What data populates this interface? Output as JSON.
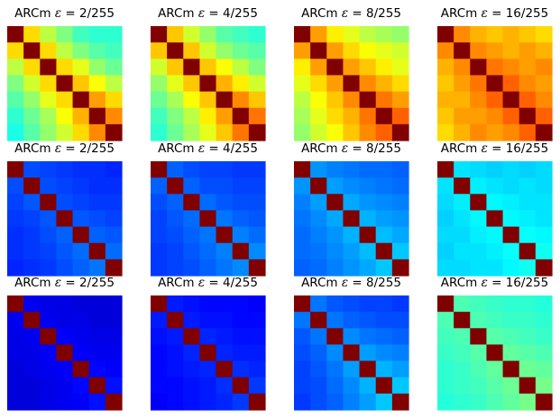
{
  "colors": {
    "background": "#ffffff",
    "colormap": "jet",
    "diagonal": "#800000"
  },
  "chart_data": [
    {
      "type": "heatmap",
      "title_prefix": "ARCm",
      "title_symbol": "ε",
      "title_value": " = 2/255",
      "title": "ARCm ε = 2/255",
      "size": 7,
      "colormap": "jet",
      "matrix": [
        [
          1.0,
          0.66,
          0.56,
          0.5,
          0.44,
          0.42,
          0.42
        ],
        [
          0.66,
          1.0,
          0.66,
          0.56,
          0.5,
          0.46,
          0.44
        ],
        [
          0.56,
          0.66,
          1.0,
          0.66,
          0.6,
          0.52,
          0.48
        ],
        [
          0.5,
          0.58,
          0.66,
          1.0,
          0.68,
          0.62,
          0.56
        ],
        [
          0.46,
          0.52,
          0.6,
          0.66,
          1.0,
          0.72,
          0.66
        ],
        [
          0.42,
          0.48,
          0.54,
          0.62,
          0.7,
          1.0,
          0.74
        ],
        [
          0.4,
          0.46,
          0.52,
          0.58,
          0.66,
          0.74,
          1.0
        ]
      ]
    },
    {
      "type": "heatmap",
      "title_prefix": "ARCm",
      "title_symbol": "ε",
      "title_value": " = 4/255",
      "title": "ARCm ε = 4/255",
      "size": 7,
      "colormap": "jet",
      "matrix": [
        [
          1.0,
          0.68,
          0.58,
          0.52,
          0.46,
          0.44,
          0.42
        ],
        [
          0.68,
          1.0,
          0.68,
          0.58,
          0.52,
          0.48,
          0.46
        ],
        [
          0.58,
          0.68,
          1.0,
          0.68,
          0.62,
          0.56,
          0.5
        ],
        [
          0.52,
          0.6,
          0.68,
          1.0,
          0.7,
          0.64,
          0.58
        ],
        [
          0.48,
          0.54,
          0.62,
          0.68,
          1.0,
          0.74,
          0.68
        ],
        [
          0.44,
          0.5,
          0.56,
          0.64,
          0.72,
          1.0,
          0.76
        ],
        [
          0.42,
          0.48,
          0.54,
          0.6,
          0.68,
          0.76,
          1.0
        ]
      ]
    },
    {
      "type": "heatmap",
      "title_prefix": "ARCm",
      "title_symbol": "ε",
      "title_value": " = 8/255",
      "title": "ARCm ε = 8/255",
      "size": 7,
      "colormap": "jet",
      "matrix": [
        [
          1.0,
          0.72,
          0.64,
          0.6,
          0.56,
          0.54,
          0.52
        ],
        [
          0.72,
          1.0,
          0.72,
          0.66,
          0.62,
          0.6,
          0.58
        ],
        [
          0.64,
          0.72,
          1.0,
          0.72,
          0.68,
          0.64,
          0.6
        ],
        [
          0.6,
          0.66,
          0.72,
          1.0,
          0.74,
          0.7,
          0.66
        ],
        [
          0.56,
          0.62,
          0.68,
          0.74,
          1.0,
          0.76,
          0.72
        ],
        [
          0.54,
          0.6,
          0.66,
          0.7,
          0.76,
          1.0,
          0.78
        ],
        [
          0.52,
          0.58,
          0.62,
          0.68,
          0.74,
          0.78,
          1.0
        ]
      ]
    },
    {
      "type": "heatmap",
      "title_prefix": "ARCm",
      "title_symbol": "ε",
      "title_value": " = 16/255",
      "title": "ARCm ε = 16/255",
      "size": 7,
      "colormap": "jet",
      "matrix": [
        [
          1.0,
          0.74,
          0.7,
          0.68,
          0.7,
          0.68,
          0.66
        ],
        [
          0.74,
          1.0,
          0.74,
          0.72,
          0.7,
          0.72,
          0.7
        ],
        [
          0.7,
          0.74,
          1.0,
          0.76,
          0.74,
          0.72,
          0.74
        ],
        [
          0.68,
          0.72,
          0.76,
          1.0,
          0.78,
          0.74,
          0.72
        ],
        [
          0.7,
          0.7,
          0.74,
          0.78,
          1.0,
          0.78,
          0.74
        ],
        [
          0.68,
          0.72,
          0.72,
          0.74,
          0.78,
          1.0,
          0.78
        ],
        [
          0.66,
          0.7,
          0.74,
          0.72,
          0.74,
          0.78,
          1.0
        ]
      ]
    },
    {
      "type": "heatmap",
      "title_prefix": "ARCm",
      "title_symbol": "ε",
      "title_value": " = 2/255",
      "title": "ARCm ε = 2/255",
      "size": 7,
      "colormap": "jet",
      "matrix": [
        [
          1.0,
          0.2,
          0.19,
          0.18,
          0.17,
          0.17,
          0.16
        ],
        [
          0.2,
          1.0,
          0.2,
          0.19,
          0.18,
          0.17,
          0.17
        ],
        [
          0.19,
          0.21,
          1.0,
          0.2,
          0.19,
          0.18,
          0.18
        ],
        [
          0.18,
          0.19,
          0.21,
          1.0,
          0.21,
          0.2,
          0.19
        ],
        [
          0.17,
          0.18,
          0.2,
          0.22,
          1.0,
          0.22,
          0.21
        ],
        [
          0.17,
          0.18,
          0.19,
          0.21,
          0.23,
          1.0,
          0.23
        ],
        [
          0.16,
          0.17,
          0.18,
          0.2,
          0.22,
          0.24,
          1.0
        ]
      ]
    },
    {
      "type": "heatmap",
      "title_prefix": "ARCm",
      "title_symbol": "ε",
      "title_value": " = 4/255",
      "title": "ARCm ε = 4/255",
      "size": 7,
      "colormap": "jet",
      "matrix": [
        [
          1.0,
          0.22,
          0.2,
          0.19,
          0.19,
          0.18,
          0.18
        ],
        [
          0.22,
          1.0,
          0.22,
          0.2,
          0.2,
          0.19,
          0.19
        ],
        [
          0.2,
          0.22,
          1.0,
          0.23,
          0.21,
          0.2,
          0.2
        ],
        [
          0.19,
          0.21,
          0.23,
          1.0,
          0.24,
          0.22,
          0.21
        ],
        [
          0.19,
          0.2,
          0.22,
          0.24,
          1.0,
          0.25,
          0.23
        ],
        [
          0.18,
          0.19,
          0.21,
          0.23,
          0.25,
          1.0,
          0.26
        ],
        [
          0.18,
          0.19,
          0.2,
          0.22,
          0.24,
          0.26,
          1.0
        ]
      ]
    },
    {
      "type": "heatmap",
      "title_prefix": "ARCm",
      "title_symbol": "ε",
      "title_value": " = 8/255",
      "title": "ARCm ε = 8/255",
      "size": 7,
      "colormap": "jet",
      "matrix": [
        [
          1.0,
          0.27,
          0.25,
          0.24,
          0.23,
          0.23,
          0.22
        ],
        [
          0.27,
          1.0,
          0.28,
          0.26,
          0.25,
          0.24,
          0.23
        ],
        [
          0.25,
          0.28,
          1.0,
          0.29,
          0.27,
          0.26,
          0.25
        ],
        [
          0.24,
          0.26,
          0.29,
          1.0,
          0.3,
          0.28,
          0.27
        ],
        [
          0.23,
          0.25,
          0.27,
          0.3,
          1.0,
          0.31,
          0.29
        ],
        [
          0.23,
          0.24,
          0.26,
          0.28,
          0.31,
          1.0,
          0.32
        ],
        [
          0.22,
          0.23,
          0.25,
          0.27,
          0.29,
          0.32,
          1.0
        ]
      ]
    },
    {
      "type": "heatmap",
      "title_prefix": "ARCm",
      "title_symbol": "ε",
      "title_value": " = 16/255",
      "title": "ARCm ε = 16/255",
      "size": 7,
      "colormap": "jet",
      "matrix": [
        [
          1.0,
          0.35,
          0.34,
          0.33,
          0.34,
          0.33,
          0.34
        ],
        [
          0.35,
          1.0,
          0.36,
          0.35,
          0.34,
          0.35,
          0.34
        ],
        [
          0.34,
          0.36,
          1.0,
          0.37,
          0.36,
          0.35,
          0.35
        ],
        [
          0.33,
          0.35,
          0.37,
          1.0,
          0.37,
          0.36,
          0.35
        ],
        [
          0.34,
          0.34,
          0.36,
          0.37,
          1.0,
          0.38,
          0.37
        ],
        [
          0.33,
          0.35,
          0.35,
          0.36,
          0.38,
          1.0,
          0.39
        ],
        [
          0.34,
          0.34,
          0.35,
          0.35,
          0.37,
          0.39,
          1.0
        ]
      ]
    },
    {
      "type": "heatmap",
      "title_prefix": "ARCm",
      "title_symbol": "ε",
      "title_value": " = 2/255",
      "title": "ARCm ε = 2/255",
      "size": 7,
      "colormap": "jet",
      "matrix": [
        [
          1.0,
          0.11,
          0.1,
          0.1,
          0.09,
          0.09,
          0.09
        ],
        [
          0.11,
          1.0,
          0.11,
          0.1,
          0.1,
          0.09,
          0.09
        ],
        [
          0.1,
          0.11,
          1.0,
          0.12,
          0.11,
          0.1,
          0.1
        ],
        [
          0.1,
          0.1,
          0.12,
          1.0,
          0.12,
          0.11,
          0.11
        ],
        [
          0.09,
          0.1,
          0.11,
          0.12,
          1.0,
          0.13,
          0.12
        ],
        [
          0.09,
          0.09,
          0.1,
          0.11,
          0.13,
          1.0,
          0.14
        ],
        [
          0.09,
          0.09,
          0.1,
          0.11,
          0.12,
          0.14,
          1.0
        ]
      ]
    },
    {
      "type": "heatmap",
      "title_prefix": "ARCm",
      "title_symbol": "ε",
      "title_value": " = 4/255",
      "title": "ARCm ε = 4/255",
      "size": 7,
      "colormap": "jet",
      "matrix": [
        [
          1.0,
          0.15,
          0.14,
          0.13,
          0.13,
          0.13,
          0.12
        ],
        [
          0.15,
          1.0,
          0.15,
          0.14,
          0.14,
          0.13,
          0.13
        ],
        [
          0.14,
          0.15,
          1.0,
          0.16,
          0.15,
          0.14,
          0.14
        ],
        [
          0.13,
          0.14,
          0.16,
          1.0,
          0.16,
          0.15,
          0.15
        ],
        [
          0.13,
          0.14,
          0.15,
          0.16,
          1.0,
          0.17,
          0.16
        ],
        [
          0.13,
          0.13,
          0.14,
          0.15,
          0.17,
          1.0,
          0.18
        ],
        [
          0.12,
          0.13,
          0.14,
          0.15,
          0.16,
          0.18,
          1.0
        ]
      ]
    },
    {
      "type": "heatmap",
      "title_prefix": "ARCm",
      "title_symbol": "ε",
      "title_value": " = 8/255",
      "title": "ARCm ε = 8/255",
      "size": 7,
      "colormap": "jet",
      "matrix": [
        [
          1.0,
          0.24,
          0.21,
          0.2,
          0.19,
          0.19,
          0.18
        ],
        [
          0.24,
          1.0,
          0.24,
          0.22,
          0.21,
          0.2,
          0.2
        ],
        [
          0.21,
          0.24,
          1.0,
          0.26,
          0.24,
          0.23,
          0.22
        ],
        [
          0.2,
          0.22,
          0.26,
          1.0,
          0.28,
          0.26,
          0.25
        ],
        [
          0.19,
          0.21,
          0.24,
          0.28,
          1.0,
          0.3,
          0.28
        ],
        [
          0.19,
          0.2,
          0.23,
          0.26,
          0.3,
          1.0,
          0.32
        ],
        [
          0.18,
          0.2,
          0.22,
          0.25,
          0.28,
          0.32,
          1.0
        ]
      ]
    },
    {
      "type": "heatmap",
      "title_prefix": "ARCm",
      "title_symbol": "ε",
      "title_value": " = 16/255",
      "title": "ARCm ε = 16/255",
      "size": 7,
      "colormap": "jet",
      "matrix": [
        [
          1.0,
          0.45,
          0.44,
          0.43,
          0.42,
          0.42,
          0.41
        ],
        [
          0.45,
          1.0,
          0.45,
          0.44,
          0.43,
          0.43,
          0.42
        ],
        [
          0.44,
          0.45,
          1.0,
          0.46,
          0.45,
          0.44,
          0.43
        ],
        [
          0.43,
          0.44,
          0.46,
          1.0,
          0.47,
          0.46,
          0.45
        ],
        [
          0.42,
          0.43,
          0.45,
          0.47,
          1.0,
          0.48,
          0.47
        ],
        [
          0.42,
          0.43,
          0.44,
          0.46,
          0.48,
          1.0,
          0.49
        ],
        [
          0.41,
          0.42,
          0.43,
          0.45,
          0.47,
          0.49,
          1.0
        ]
      ]
    }
  ]
}
